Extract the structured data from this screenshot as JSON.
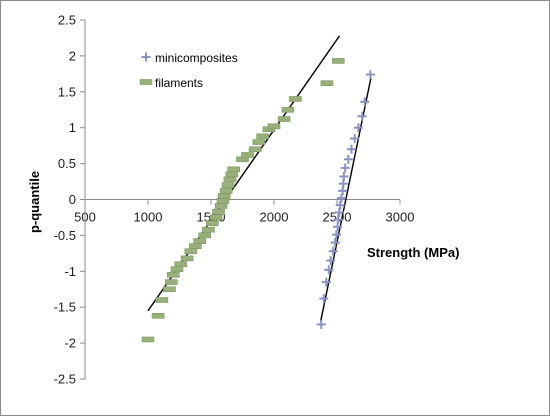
{
  "chart_data": {
    "type": "scatter",
    "title": "",
    "xlabel": "Strength (MPa)",
    "ylabel": "p-quantile",
    "xlim": [
      500,
      3000
    ],
    "ylim": [
      -2.5,
      2.5
    ],
    "x_ticks": [
      "500",
      "1000",
      "1500",
      "2000",
      "2500",
      "3000"
    ],
    "y_ticks": [
      "2.5",
      "2",
      "1.5",
      "1",
      "0.5",
      "0",
      "-0.5",
      "-1",
      "-1.5",
      "-2",
      "-2.5"
    ],
    "grid": false,
    "legend_placement": "top-left inside plot",
    "series": [
      {
        "name": "minicomposites",
        "marker": "plus",
        "color": "#8c92c6",
        "points": [
          [
            2375,
            -1.74
          ],
          [
            2395,
            -1.38
          ],
          [
            2415,
            -1.15
          ],
          [
            2435,
            -0.98
          ],
          [
            2450,
            -0.85
          ],
          [
            2470,
            -0.72
          ],
          [
            2485,
            -0.6
          ],
          [
            2495,
            -0.49
          ],
          [
            2505,
            -0.38
          ],
          [
            2510,
            -0.28
          ],
          [
            2518,
            -0.18
          ],
          [
            2525,
            -0.08
          ],
          [
            2535,
            0.02
          ],
          [
            2545,
            0.12
          ],
          [
            2550,
            0.22
          ],
          [
            2555,
            0.32
          ],
          [
            2565,
            0.44
          ],
          [
            2590,
            0.56
          ],
          [
            2615,
            0.7
          ],
          [
            2640,
            0.85
          ],
          [
            2670,
            1.0
          ],
          [
            2700,
            1.16
          ],
          [
            2720,
            1.36
          ],
          [
            2765,
            1.74
          ]
        ]
      },
      {
        "name": "filaments",
        "marker": "dash",
        "color": "#98b07a",
        "points": [
          [
            1000,
            -1.95
          ],
          [
            1080,
            -1.62
          ],
          [
            1110,
            -1.4
          ],
          [
            1170,
            -1.25
          ],
          [
            1185,
            -1.15
          ],
          [
            1200,
            -1.05
          ],
          [
            1230,
            -0.97
          ],
          [
            1260,
            -0.9
          ],
          [
            1310,
            -0.82
          ],
          [
            1340,
            -0.72
          ],
          [
            1375,
            -0.65
          ],
          [
            1410,
            -0.58
          ],
          [
            1450,
            -0.5
          ],
          [
            1480,
            -0.42
          ],
          [
            1510,
            -0.33
          ],
          [
            1540,
            -0.25
          ],
          [
            1560,
            -0.17
          ],
          [
            1580,
            -0.09
          ],
          [
            1595,
            -0.02
          ],
          [
            1605,
            0.05
          ],
          [
            1620,
            0.12
          ],
          [
            1635,
            0.2
          ],
          [
            1650,
            0.28
          ],
          [
            1665,
            0.35
          ],
          [
            1680,
            0.42
          ],
          [
            1750,
            0.56
          ],
          [
            1790,
            0.62
          ],
          [
            1850,
            0.7
          ],
          [
            1880,
            0.8
          ],
          [
            1910,
            0.88
          ],
          [
            1960,
            0.98
          ],
          [
            2000,
            1.02
          ],
          [
            2080,
            1.12
          ],
          [
            2110,
            1.25
          ],
          [
            2170,
            1.4
          ],
          [
            2420,
            1.62
          ],
          [
            2510,
            1.93
          ]
        ]
      }
    ],
    "fit_lines": [
      {
        "series": "filaments",
        "x": [
          1000,
          2520
        ],
        "y": [
          -1.55,
          2.28
        ]
      },
      {
        "series": "minicomposites",
        "x": [
          2370,
          2770
        ],
        "y": [
          -1.7,
          1.7
        ]
      }
    ]
  }
}
